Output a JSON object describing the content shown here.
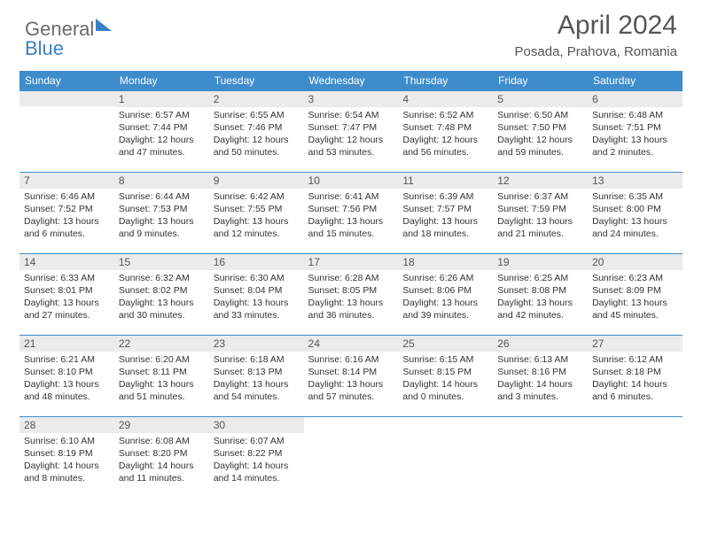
{
  "logo": {
    "part1": "General",
    "part2": "Blue"
  },
  "title": "April 2024",
  "subtitle": "Posada, Prahova, Romania",
  "colors": {
    "headerBg": "#3e8ccc",
    "headerText": "#ffffff",
    "dayBarBg": "#ebebeb",
    "bodyText": "#333333"
  },
  "fontsize": {
    "title": 30,
    "subtitle": 15,
    "dayheader": 12,
    "body": 10.5
  },
  "dayHeaders": [
    "Sunday",
    "Monday",
    "Tuesday",
    "Wednesday",
    "Thursday",
    "Friday",
    "Saturday"
  ],
  "weeks": [
    [
      null,
      {
        "n": "1",
        "sr": "Sunrise: 6:57 AM",
        "ss": "Sunset: 7:44 PM",
        "d1": "Daylight: 12 hours",
        "d2": "and 47 minutes."
      },
      {
        "n": "2",
        "sr": "Sunrise: 6:55 AM",
        "ss": "Sunset: 7:46 PM",
        "d1": "Daylight: 12 hours",
        "d2": "and 50 minutes."
      },
      {
        "n": "3",
        "sr": "Sunrise: 6:54 AM",
        "ss": "Sunset: 7:47 PM",
        "d1": "Daylight: 12 hours",
        "d2": "and 53 minutes."
      },
      {
        "n": "4",
        "sr": "Sunrise: 6:52 AM",
        "ss": "Sunset: 7:48 PM",
        "d1": "Daylight: 12 hours",
        "d2": "and 56 minutes."
      },
      {
        "n": "5",
        "sr": "Sunrise: 6:50 AM",
        "ss": "Sunset: 7:50 PM",
        "d1": "Daylight: 12 hours",
        "d2": "and 59 minutes."
      },
      {
        "n": "6",
        "sr": "Sunrise: 6:48 AM",
        "ss": "Sunset: 7:51 PM",
        "d1": "Daylight: 13 hours",
        "d2": "and 2 minutes."
      }
    ],
    [
      {
        "n": "7",
        "sr": "Sunrise: 6:46 AM",
        "ss": "Sunset: 7:52 PM",
        "d1": "Daylight: 13 hours",
        "d2": "and 6 minutes."
      },
      {
        "n": "8",
        "sr": "Sunrise: 6:44 AM",
        "ss": "Sunset: 7:53 PM",
        "d1": "Daylight: 13 hours",
        "d2": "and 9 minutes."
      },
      {
        "n": "9",
        "sr": "Sunrise: 6:42 AM",
        "ss": "Sunset: 7:55 PM",
        "d1": "Daylight: 13 hours",
        "d2": "and 12 minutes."
      },
      {
        "n": "10",
        "sr": "Sunrise: 6:41 AM",
        "ss": "Sunset: 7:56 PM",
        "d1": "Daylight: 13 hours",
        "d2": "and 15 minutes."
      },
      {
        "n": "11",
        "sr": "Sunrise: 6:39 AM",
        "ss": "Sunset: 7:57 PM",
        "d1": "Daylight: 13 hours",
        "d2": "and 18 minutes."
      },
      {
        "n": "12",
        "sr": "Sunrise: 6:37 AM",
        "ss": "Sunset: 7:59 PM",
        "d1": "Daylight: 13 hours",
        "d2": "and 21 minutes."
      },
      {
        "n": "13",
        "sr": "Sunrise: 6:35 AM",
        "ss": "Sunset: 8:00 PM",
        "d1": "Daylight: 13 hours",
        "d2": "and 24 minutes."
      }
    ],
    [
      {
        "n": "14",
        "sr": "Sunrise: 6:33 AM",
        "ss": "Sunset: 8:01 PM",
        "d1": "Daylight: 13 hours",
        "d2": "and 27 minutes."
      },
      {
        "n": "15",
        "sr": "Sunrise: 6:32 AM",
        "ss": "Sunset: 8:02 PM",
        "d1": "Daylight: 13 hours",
        "d2": "and 30 minutes."
      },
      {
        "n": "16",
        "sr": "Sunrise: 6:30 AM",
        "ss": "Sunset: 8:04 PM",
        "d1": "Daylight: 13 hours",
        "d2": "and 33 minutes."
      },
      {
        "n": "17",
        "sr": "Sunrise: 6:28 AM",
        "ss": "Sunset: 8:05 PM",
        "d1": "Daylight: 13 hours",
        "d2": "and 36 minutes."
      },
      {
        "n": "18",
        "sr": "Sunrise: 6:26 AM",
        "ss": "Sunset: 8:06 PM",
        "d1": "Daylight: 13 hours",
        "d2": "and 39 minutes."
      },
      {
        "n": "19",
        "sr": "Sunrise: 6:25 AM",
        "ss": "Sunset: 8:08 PM",
        "d1": "Daylight: 13 hours",
        "d2": "and 42 minutes."
      },
      {
        "n": "20",
        "sr": "Sunrise: 6:23 AM",
        "ss": "Sunset: 8:09 PM",
        "d1": "Daylight: 13 hours",
        "d2": "and 45 minutes."
      }
    ],
    [
      {
        "n": "21",
        "sr": "Sunrise: 6:21 AM",
        "ss": "Sunset: 8:10 PM",
        "d1": "Daylight: 13 hours",
        "d2": "and 48 minutes."
      },
      {
        "n": "22",
        "sr": "Sunrise: 6:20 AM",
        "ss": "Sunset: 8:11 PM",
        "d1": "Daylight: 13 hours",
        "d2": "and 51 minutes."
      },
      {
        "n": "23",
        "sr": "Sunrise: 6:18 AM",
        "ss": "Sunset: 8:13 PM",
        "d1": "Daylight: 13 hours",
        "d2": "and 54 minutes."
      },
      {
        "n": "24",
        "sr": "Sunrise: 6:16 AM",
        "ss": "Sunset: 8:14 PM",
        "d1": "Daylight: 13 hours",
        "d2": "and 57 minutes."
      },
      {
        "n": "25",
        "sr": "Sunrise: 6:15 AM",
        "ss": "Sunset: 8:15 PM",
        "d1": "Daylight: 14 hours",
        "d2": "and 0 minutes."
      },
      {
        "n": "26",
        "sr": "Sunrise: 6:13 AM",
        "ss": "Sunset: 8:16 PM",
        "d1": "Daylight: 14 hours",
        "d2": "and 3 minutes."
      },
      {
        "n": "27",
        "sr": "Sunrise: 6:12 AM",
        "ss": "Sunset: 8:18 PM",
        "d1": "Daylight: 14 hours",
        "d2": "and 6 minutes."
      }
    ],
    [
      {
        "n": "28",
        "sr": "Sunrise: 6:10 AM",
        "ss": "Sunset: 8:19 PM",
        "d1": "Daylight: 14 hours",
        "d2": "and 8 minutes."
      },
      {
        "n": "29",
        "sr": "Sunrise: 6:08 AM",
        "ss": "Sunset: 8:20 PM",
        "d1": "Daylight: 14 hours",
        "d2": "and 11 minutes."
      },
      {
        "n": "30",
        "sr": "Sunrise: 6:07 AM",
        "ss": "Sunset: 8:22 PM",
        "d1": "Daylight: 14 hours",
        "d2": "and 14 minutes."
      },
      null,
      null,
      null,
      null
    ]
  ]
}
